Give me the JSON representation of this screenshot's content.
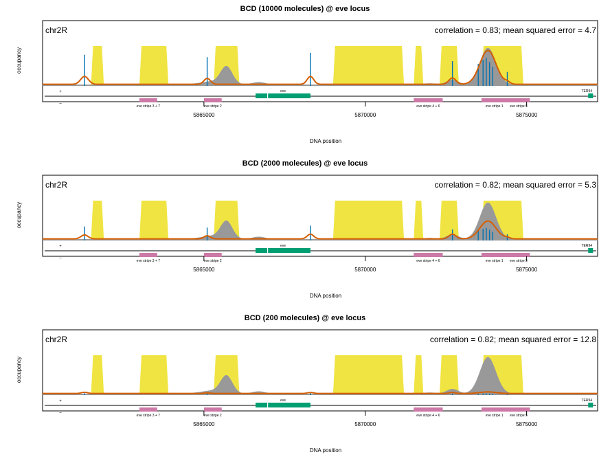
{
  "colors": {
    "accessibility": "#f0e442",
    "observed": "#999999",
    "predicted": "#d55e00",
    "sites": "#0072b2",
    "enhancers": "#cc79a7",
    "genes": "#009e73",
    "axis": "#000000"
  },
  "chart_data": [
    {
      "type": "area",
      "title": "BCD (10000 molecules) @ eve locus",
      "chrom_label": "chr2R",
      "annotation": "correlation = 0.83; mean squared error = 4.7",
      "xlabel": "DNA position",
      "ylabel": "occupancy",
      "model_level": "high",
      "xlim": [
        5860000,
        5877200
      ],
      "xticks": [
        5865000,
        5870000,
        5875000
      ],
      "grid": false
    },
    {
      "type": "area",
      "title": "BCD (2000 molecules) @ eve locus",
      "chrom_label": "chr2R",
      "annotation": "correlation = 0.82; mean squared error = 5.3",
      "xlabel": "DNA position",
      "ylabel": "occupancy",
      "model_level": "medium",
      "xlim": [
        5860000,
        5877200
      ],
      "xticks": [
        5865000,
        5870000,
        5875000
      ],
      "grid": false
    },
    {
      "type": "area",
      "title": "BCD (200 molecules) @ eve locus",
      "chrom_label": "chr2R",
      "annotation": "correlation = 0.82; mean squared error = 12.8",
      "xlabel": "DNA position",
      "ylabel": "occupancy",
      "model_level": "low",
      "xlim": [
        5860000,
        5877200
      ],
      "xticks": [
        5865000,
        5870000,
        5875000
      ],
      "grid": false
    }
  ],
  "track": {
    "accessible_regions": [
      [
        5861500,
        5861900
      ],
      [
        5863000,
        5863900
      ],
      [
        5865300,
        5866100
      ],
      [
        5869000,
        5871200
      ],
      [
        5871500,
        5871800
      ],
      [
        5872300,
        5872900
      ],
      [
        5873600,
        5874900
      ]
    ],
    "observed_peaks": [
      {
        "x": 5865700,
        "h": 0.42,
        "w": 180
      },
      {
        "x": 5865300,
        "h": 0.08,
        "w": 400
      },
      {
        "x": 5866700,
        "h": 0.06,
        "w": 200
      },
      {
        "x": 5872700,
        "h": 0.12,
        "w": 180
      },
      {
        "x": 5873800,
        "h": 0.92,
        "w": 250
      },
      {
        "x": 5872000,
        "h": 0.03,
        "w": 200
      }
    ],
    "binding_sites": [
      {
        "x": 5861300,
        "h": 0.78
      },
      {
        "x": 5865100,
        "h": 0.72
      },
      {
        "x": 5868300,
        "h": 0.83
      },
      {
        "x": 5872700,
        "h": 0.62
      },
      {
        "x": 5873500,
        "h": 0.55
      },
      {
        "x": 5873650,
        "h": 0.65
      },
      {
        "x": 5873750,
        "h": 0.7
      },
      {
        "x": 5873850,
        "h": 0.6
      },
      {
        "x": 5873950,
        "h": 0.48
      },
      {
        "x": 5874400,
        "h": 0.35
      }
    ],
    "predicted_peaks": {
      "high": [
        {
          "x": 5861300,
          "h": 0.2,
          "w": 120
        },
        {
          "x": 5865100,
          "h": 0.15,
          "w": 100
        },
        {
          "x": 5868300,
          "h": 0.2,
          "w": 100
        },
        {
          "x": 5872700,
          "h": 0.16,
          "w": 110
        },
        {
          "x": 5873800,
          "h": 0.85,
          "w": 250
        },
        {
          "x": 5874400,
          "h": 0.05,
          "w": 80
        }
      ],
      "medium": [
        {
          "x": 5861300,
          "h": 0.1,
          "w": 110
        },
        {
          "x": 5865100,
          "h": 0.08,
          "w": 100
        },
        {
          "x": 5868300,
          "h": 0.12,
          "w": 100
        },
        {
          "x": 5872700,
          "h": 0.12,
          "w": 110
        },
        {
          "x": 5873800,
          "h": 0.45,
          "w": 250
        },
        {
          "x": 5874400,
          "h": 0.03,
          "w": 80
        }
      ],
      "low": [
        {
          "x": 5861300,
          "h": 0.03,
          "w": 100
        },
        {
          "x": 5865100,
          "h": 0.015,
          "w": 100
        },
        {
          "x": 5868300,
          "h": 0.025,
          "w": 100
        },
        {
          "x": 5872700,
          "h": 0.025,
          "w": 100
        },
        {
          "x": 5873800,
          "h": 0.04,
          "w": 250
        }
      ]
    },
    "enhancers": [
      {
        "label": "eve stripe 3 + 7",
        "start": 5863000,
        "end": 5863550
      },
      {
        "label": "eve stripe 2",
        "start": 5865000,
        "end": 5865550
      },
      {
        "label": "eve stripe 4 + 6",
        "start": 5871500,
        "end": 5872400
      },
      {
        "label": "eve stripe 1",
        "start": 5873600,
        "end": 5874400
      },
      {
        "label": "eve stripe 5",
        "start": 5874400,
        "end": 5875100
      }
    ],
    "genes": [
      {
        "label": "eve",
        "start": 5866600,
        "end": 5868300,
        "strand": "+"
      },
      {
        "label": "TER94",
        "start": 5876950,
        "end": 5877100,
        "strand": "+"
      }
    ],
    "strand_plus": "+",
    "strand_minus": "–"
  }
}
